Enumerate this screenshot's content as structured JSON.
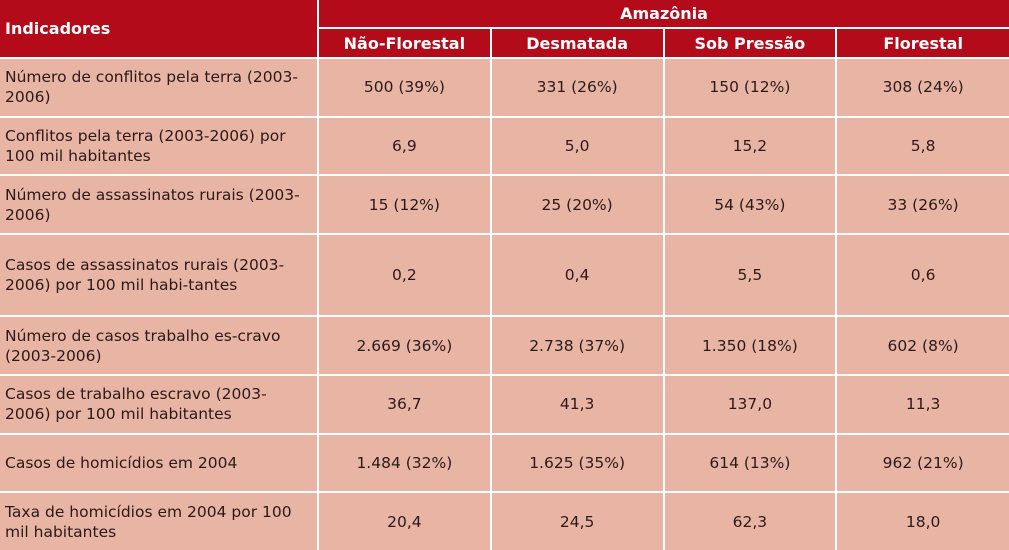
{
  "header": {
    "indicadores": "Indicadores",
    "region": "Amazônia",
    "columns": [
      "Não-Florestal",
      "Desmatada",
      "Sob Pressão",
      "Florestal"
    ]
  },
  "rows": [
    {
      "label": "Número de conflitos pela terra (2003-2006)",
      "values": [
        "500 (39%)",
        "331 (26%)",
        "150 (12%)",
        "308 (24%)"
      ]
    },
    {
      "label": "Conflitos pela terra (2003-2006) por 100 mil habitantes",
      "values": [
        "6,9",
        "5,0",
        "15,2",
        "5,8"
      ]
    },
    {
      "label": "Número de assassinatos rurais (2003-2006)",
      "values": [
        "15 (12%)",
        "25 (20%)",
        "54 (43%)",
        "33 (26%)"
      ]
    },
    {
      "label": "Casos de assassinatos rurais (2003-2006) por 100 mil habi-tantes",
      "values": [
        "0,2",
        "0,4",
        "5,5",
        "0,6"
      ]
    },
    {
      "label": "Número de casos trabalho es-cravo (2003-2006)",
      "values": [
        "2.669 (36%)",
        "2.738 (37%)",
        "1.350 (18%)",
        "602 (8%)"
      ]
    },
    {
      "label": "Casos de trabalho escravo (2003-2006) por 100 mil habitantes",
      "values": [
        "36,7",
        "41,3",
        "137,0",
        "11,3"
      ]
    },
    {
      "label": "Casos de homicídios em 2004",
      "values": [
        "1.484 (32%)",
        "1.625 (35%)",
        "614 (13%)",
        "962 (21%)"
      ]
    },
    {
      "label": "Taxa de homicídios em 2004 por 100 mil habitantes",
      "values": [
        "20,4",
        "24,5",
        "62,3",
        "18,0"
      ]
    }
  ]
}
